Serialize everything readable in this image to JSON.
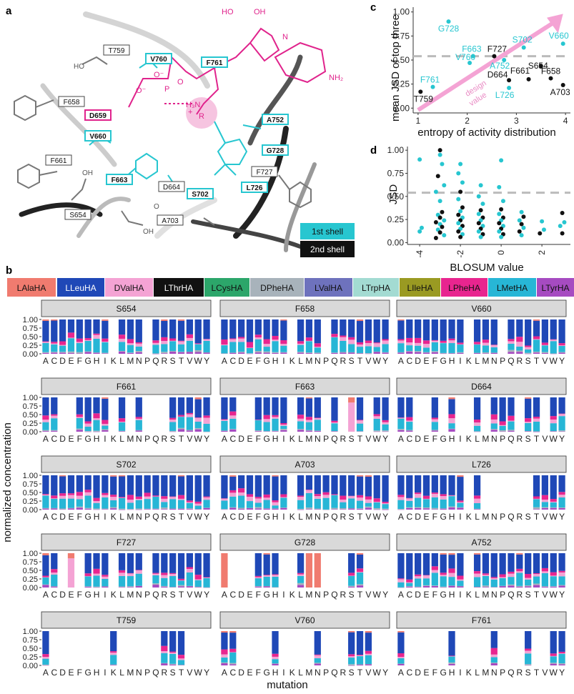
{
  "colors": {
    "LAlaHA": "#f07b6f",
    "LLeuHA": "#1f48b7",
    "DValHA": "#f4a3d4",
    "LThrHA": "#111111",
    "LCysHA": "#2ca66a",
    "DPheHA": "#a8b3bb",
    "LValHA": "#6e72bd",
    "LTrpHA": "#a3dbd2",
    "LIleHA": "#9a9a22",
    "LPheHA": "#e8258f",
    "LMetHA": "#27b6d6",
    "LTyrHA": "#a64bc1",
    "shell1": "#27c6d0",
    "shell2": "#111111",
    "ligand": "#e0238c"
  },
  "panel_a": {
    "label": "a",
    "ligand_text": {
      "phosphate": "P",
      "oxy_minus": "O⁻",
      "oxy": "O",
      "ho1": "HO",
      "oh1": "OH",
      "nh2": "NH₂",
      "n": "N",
      "h3n": "H₃N",
      "plus": "+",
      "r": "R",
      "ominus": "O⁻"
    },
    "residues": [
      {
        "name": "T759",
        "shell": "2nd"
      },
      {
        "name": "V760",
        "shell": "1st"
      },
      {
        "name": "F761",
        "shell": "1st"
      },
      {
        "name": "F658",
        "shell": "2nd"
      },
      {
        "name": "D659",
        "shell": "special"
      },
      {
        "name": "V660",
        "shell": "1st"
      },
      {
        "name": "A752",
        "shell": "1st"
      },
      {
        "name": "G728",
        "shell": "1st"
      },
      {
        "name": "F661",
        "shell": "2nd"
      },
      {
        "name": "F663",
        "shell": "1st"
      },
      {
        "name": "F727",
        "shell": "2nd"
      },
      {
        "name": "S702",
        "shell": "1st"
      },
      {
        "name": "L726",
        "shell": "1st"
      },
      {
        "name": "D664",
        "shell": "2nd"
      },
      {
        "name": "S654",
        "shell": "2nd"
      },
      {
        "name": "A703",
        "shell": "2nd"
      }
    ],
    "side_text": {
      "ho": "HO",
      "oh": "OH",
      "oh2": "OH",
      "o": "O"
    },
    "legend": [
      "1st shell",
      "2nd shell"
    ]
  },
  "panel_b": {
    "label": "b",
    "series": [
      "LAlaHA",
      "LLeuHA",
      "DValHA",
      "LThrHA",
      "LCysHA",
      "DPheHA",
      "LValHA",
      "LTrpHA",
      "LIleHA",
      "LPheHA",
      "LMetHA",
      "LTyrHA"
    ],
    "x_labels": [
      "A",
      "C",
      "D",
      "E",
      "F",
      "G",
      "H",
      "I",
      "K",
      "L",
      "M",
      "N",
      "P",
      "Q",
      "R",
      "S",
      "T",
      "V",
      "W",
      "Y"
    ],
    "y_ticks": [
      "0.00",
      "0.25",
      "0.50",
      "0.75",
      "1.00"
    ],
    "xlabel": "mutation",
    "ylabel": "normalized concentration",
    "facets": [
      {
        "name": "S654",
        "present": [
          1,
          1,
          1,
          1,
          1,
          1,
          1,
          1,
          0,
          1,
          1,
          1,
          0,
          1,
          1,
          1,
          1,
          1,
          1,
          1
        ]
      },
      {
        "name": "F658",
        "present": [
          1,
          1,
          1,
          1,
          1,
          1,
          1,
          1,
          0,
          1,
          1,
          1,
          0,
          1,
          1,
          1,
          1,
          1,
          1,
          1
        ]
      },
      {
        "name": "V660",
        "present": [
          1,
          1,
          1,
          1,
          1,
          1,
          1,
          1,
          0,
          1,
          1,
          1,
          0,
          1,
          1,
          1,
          1,
          1,
          1,
          1
        ]
      },
      {
        "name": "F661",
        "present": [
          1,
          1,
          0,
          0,
          1,
          1,
          1,
          1,
          0,
          1,
          0,
          1,
          0,
          0,
          0,
          1,
          1,
          1,
          1,
          1
        ]
      },
      {
        "name": "F663",
        "present": [
          1,
          1,
          0,
          0,
          1,
          1,
          1,
          1,
          0,
          1,
          1,
          1,
          0,
          1,
          0,
          1,
          1,
          0,
          1,
          1
        ]
      },
      {
        "name": "D664",
        "present": [
          1,
          1,
          0,
          0,
          1,
          0,
          1,
          0,
          0,
          1,
          0,
          1,
          1,
          1,
          0,
          1,
          1,
          0,
          1,
          1
        ]
      },
      {
        "name": "S702",
        "present": [
          1,
          1,
          1,
          1,
          1,
          1,
          1,
          1,
          1,
          1,
          1,
          1,
          1,
          1,
          1,
          1,
          1,
          1,
          1,
          1
        ]
      },
      {
        "name": "A703",
        "present": [
          1,
          1,
          1,
          1,
          1,
          1,
          1,
          1,
          0,
          1,
          1,
          1,
          1,
          1,
          1,
          1,
          1,
          1,
          1,
          1
        ]
      },
      {
        "name": "L726",
        "present": [
          1,
          1,
          1,
          1,
          1,
          1,
          1,
          1,
          0,
          1,
          0,
          0,
          0,
          0,
          0,
          0,
          1,
          1,
          1,
          1
        ]
      },
      {
        "name": "F727",
        "present": [
          1,
          1,
          0,
          1,
          0,
          1,
          1,
          1,
          0,
          1,
          1,
          1,
          0,
          1,
          1,
          1,
          1,
          1,
          1,
          1
        ]
      },
      {
        "name": "G728",
        "present": [
          1,
          0,
          0,
          0,
          1,
          1,
          1,
          0,
          0,
          1,
          1,
          1,
          0,
          0,
          0,
          1,
          1,
          0,
          0,
          0
        ]
      },
      {
        "name": "A752",
        "present": [
          1,
          1,
          1,
          1,
          1,
          1,
          1,
          1,
          0,
          1,
          1,
          1,
          1,
          1,
          1,
          1,
          1,
          1,
          1,
          1
        ]
      },
      {
        "name": "T759",
        "present": [
          1,
          0,
          0,
          0,
          0,
          0,
          0,
          0,
          1,
          0,
          0,
          0,
          0,
          0,
          1,
          1,
          1,
          0,
          0,
          0
        ]
      },
      {
        "name": "V760",
        "present": [
          1,
          1,
          0,
          0,
          0,
          0,
          1,
          0,
          0,
          0,
          0,
          1,
          0,
          0,
          0,
          1,
          1,
          1,
          0,
          0
        ]
      },
      {
        "name": "F761",
        "present": [
          1,
          0,
          0,
          0,
          0,
          0,
          1,
          0,
          0,
          0,
          0,
          1,
          0,
          0,
          0,
          1,
          0,
          0,
          1,
          1
        ]
      }
    ]
  },
  "chart_data": [
    {
      "type": "scatter",
      "panel": "c",
      "title": "",
      "xlabel": "entropy of activity distribution",
      "ylabel": "mean JSD of top three",
      "xlim": [
        0.9,
        4.1
      ],
      "ylim": [
        -0.05,
        1.05
      ],
      "x_ticks": [
        "1",
        "2",
        "3",
        "4"
      ],
      "y_ticks": [
        "0.00",
        "0.25",
        "0.50",
        "0.75",
        "1.00"
      ],
      "hline": 0.54,
      "arrow_annotation": "design value",
      "points": [
        {
          "label": "G728",
          "x": 1.62,
          "y": 0.9,
          "shell": "1st"
        },
        {
          "label": "F663",
          "x": 2.12,
          "y": 0.54,
          "shell": "1st"
        },
        {
          "label": "V760",
          "x": 2.05,
          "y": 0.47,
          "shell": "1st"
        },
        {
          "label": "F761",
          "x": 1.3,
          "y": 0.22,
          "shell": "1st"
        },
        {
          "label": "T759",
          "x": 1.05,
          "y": 0.17,
          "shell": "2nd"
        },
        {
          "label": "F727",
          "x": 2.55,
          "y": 0.54,
          "shell": "2nd"
        },
        {
          "label": "A752",
          "x": 2.75,
          "y": 0.5,
          "shell": "1st"
        },
        {
          "label": "S702",
          "x": 3.15,
          "y": 0.63,
          "shell": "1st"
        },
        {
          "label": "V660",
          "x": 3.95,
          "y": 0.67,
          "shell": "1st"
        },
        {
          "label": "S654",
          "x": 3.5,
          "y": 0.44,
          "shell": "2nd"
        },
        {
          "label": "D664",
          "x": 2.85,
          "y": 0.29,
          "shell": "2nd"
        },
        {
          "label": "L726",
          "x": 2.85,
          "y": 0.21,
          "shell": "1st"
        },
        {
          "label": "F661",
          "x": 3.25,
          "y": 0.3,
          "shell": "2nd"
        },
        {
          "label": "F658",
          "x": 3.7,
          "y": 0.31,
          "shell": "2nd"
        },
        {
          "label": "A703",
          "x": 3.95,
          "y": 0.24,
          "shell": "2nd"
        }
      ]
    },
    {
      "type": "scatter",
      "panel": "d",
      "xlabel": "BLOSUM value",
      "ylabel": "JSD",
      "xlim": [
        -4.6,
        3.4
      ],
      "ylim": [
        -0.02,
        1.04
      ],
      "x_ticks": [
        "-4",
        "-2",
        "0",
        "2"
      ],
      "y_ticks": [
        "0.00",
        "0.25",
        "0.50",
        "0.75",
        "1.00"
      ],
      "hline": 0.54,
      "points": [
        {
          "x": -4,
          "y": 0.9,
          "s": 1
        },
        {
          "x": -4,
          "y": 0.12,
          "s": 1
        },
        {
          "x": -3.9,
          "y": 0.16,
          "s": 1
        },
        {
          "x": -3,
          "y": 1.0,
          "s": 2
        },
        {
          "x": -3,
          "y": 0.95,
          "s": 1
        },
        {
          "x": -2.9,
          "y": 0.85,
          "s": 1
        },
        {
          "x": -3.1,
          "y": 0.72,
          "s": 2
        },
        {
          "x": -2.8,
          "y": 0.62,
          "s": 1
        },
        {
          "x": -3.2,
          "y": 0.55,
          "s": 1
        },
        {
          "x": -3,
          "y": 0.45,
          "s": 1
        },
        {
          "x": -2.9,
          "y": 0.33,
          "s": 2
        },
        {
          "x": -3.1,
          "y": 0.3,
          "s": 1
        },
        {
          "x": -3,
          "y": 0.27,
          "s": 2
        },
        {
          "x": -2.8,
          "y": 0.24,
          "s": 1
        },
        {
          "x": -3.2,
          "y": 0.22,
          "s": 2
        },
        {
          "x": -3,
          "y": 0.2,
          "s": 1
        },
        {
          "x": -2.9,
          "y": 0.17,
          "s": 2
        },
        {
          "x": -3.1,
          "y": 0.14,
          "s": 1
        },
        {
          "x": -3,
          "y": 0.11,
          "s": 2
        },
        {
          "x": -2.8,
          "y": 0.08,
          "s": 1
        },
        {
          "x": -3.2,
          "y": 0.05,
          "s": 2
        },
        {
          "x": -2,
          "y": 0.85,
          "s": 1
        },
        {
          "x": -2.1,
          "y": 0.75,
          "s": 1
        },
        {
          "x": -1.9,
          "y": 0.65,
          "s": 1
        },
        {
          "x": -2,
          "y": 0.55,
          "s": 2
        },
        {
          "x": -2.1,
          "y": 0.47,
          "s": 1
        },
        {
          "x": -1.9,
          "y": 0.38,
          "s": 2
        },
        {
          "x": -2,
          "y": 0.34,
          "s": 1
        },
        {
          "x": -2.1,
          "y": 0.3,
          "s": 2
        },
        {
          "x": -1.9,
          "y": 0.27,
          "s": 1
        },
        {
          "x": -2,
          "y": 0.24,
          "s": 2
        },
        {
          "x": -2.1,
          "y": 0.21,
          "s": 1
        },
        {
          "x": -1.9,
          "y": 0.18,
          "s": 2
        },
        {
          "x": -2,
          "y": 0.15,
          "s": 1
        },
        {
          "x": -2.1,
          "y": 0.12,
          "s": 2
        },
        {
          "x": -1.9,
          "y": 0.09,
          "s": 1
        },
        {
          "x": -2,
          "y": 0.06,
          "s": 2
        },
        {
          "x": -1,
          "y": 0.62,
          "s": 1
        },
        {
          "x": -1.1,
          "y": 0.5,
          "s": 1
        },
        {
          "x": -0.9,
          "y": 0.42,
          "s": 1
        },
        {
          "x": -1,
          "y": 0.35,
          "s": 2
        },
        {
          "x": -1.1,
          "y": 0.31,
          "s": 1
        },
        {
          "x": -0.9,
          "y": 0.27,
          "s": 2
        },
        {
          "x": -1,
          "y": 0.24,
          "s": 1
        },
        {
          "x": -1.1,
          "y": 0.21,
          "s": 2
        },
        {
          "x": -0.9,
          "y": 0.18,
          "s": 1
        },
        {
          "x": -1,
          "y": 0.15,
          "s": 2
        },
        {
          "x": -1.1,
          "y": 0.12,
          "s": 1
        },
        {
          "x": -0.9,
          "y": 0.09,
          "s": 2
        },
        {
          "x": -1,
          "y": 0.06,
          "s": 1
        },
        {
          "x": 0,
          "y": 0.89,
          "s": 1
        },
        {
          "x": -0.1,
          "y": 0.6,
          "s": 1
        },
        {
          "x": 0.1,
          "y": 0.45,
          "s": 1
        },
        {
          "x": 0,
          "y": 0.36,
          "s": 2
        },
        {
          "x": -0.1,
          "y": 0.31,
          "s": 1
        },
        {
          "x": 0.1,
          "y": 0.27,
          "s": 2
        },
        {
          "x": 0,
          "y": 0.24,
          "s": 1
        },
        {
          "x": -0.1,
          "y": 0.21,
          "s": 2
        },
        {
          "x": 0.1,
          "y": 0.18,
          "s": 1
        },
        {
          "x": 0,
          "y": 0.15,
          "s": 2
        },
        {
          "x": -0.1,
          "y": 0.12,
          "s": 1
        },
        {
          "x": 0.1,
          "y": 0.09,
          "s": 2
        },
        {
          "x": 0,
          "y": 0.06,
          "s": 1
        },
        {
          "x": 1,
          "y": 0.33,
          "s": 1
        },
        {
          "x": 1.1,
          "y": 0.28,
          "s": 2
        },
        {
          "x": 0.9,
          "y": 0.24,
          "s": 1
        },
        {
          "x": 1,
          "y": 0.2,
          "s": 2
        },
        {
          "x": 1.1,
          "y": 0.16,
          "s": 1
        },
        {
          "x": 0.9,
          "y": 0.12,
          "s": 2
        },
        {
          "x": 1,
          "y": 0.08,
          "s": 1
        },
        {
          "x": 2,
          "y": 0.23,
          "s": 1
        },
        {
          "x": 2.1,
          "y": 0.14,
          "s": 1
        },
        {
          "x": 1.9,
          "y": 0.1,
          "s": 2
        },
        {
          "x": 3,
          "y": 0.32,
          "s": 2
        },
        {
          "x": 3.1,
          "y": 0.22,
          "s": 1
        },
        {
          "x": 2.9,
          "y": 0.18,
          "s": 1
        },
        {
          "x": 3,
          "y": 0.1,
          "s": 2
        }
      ]
    }
  ]
}
